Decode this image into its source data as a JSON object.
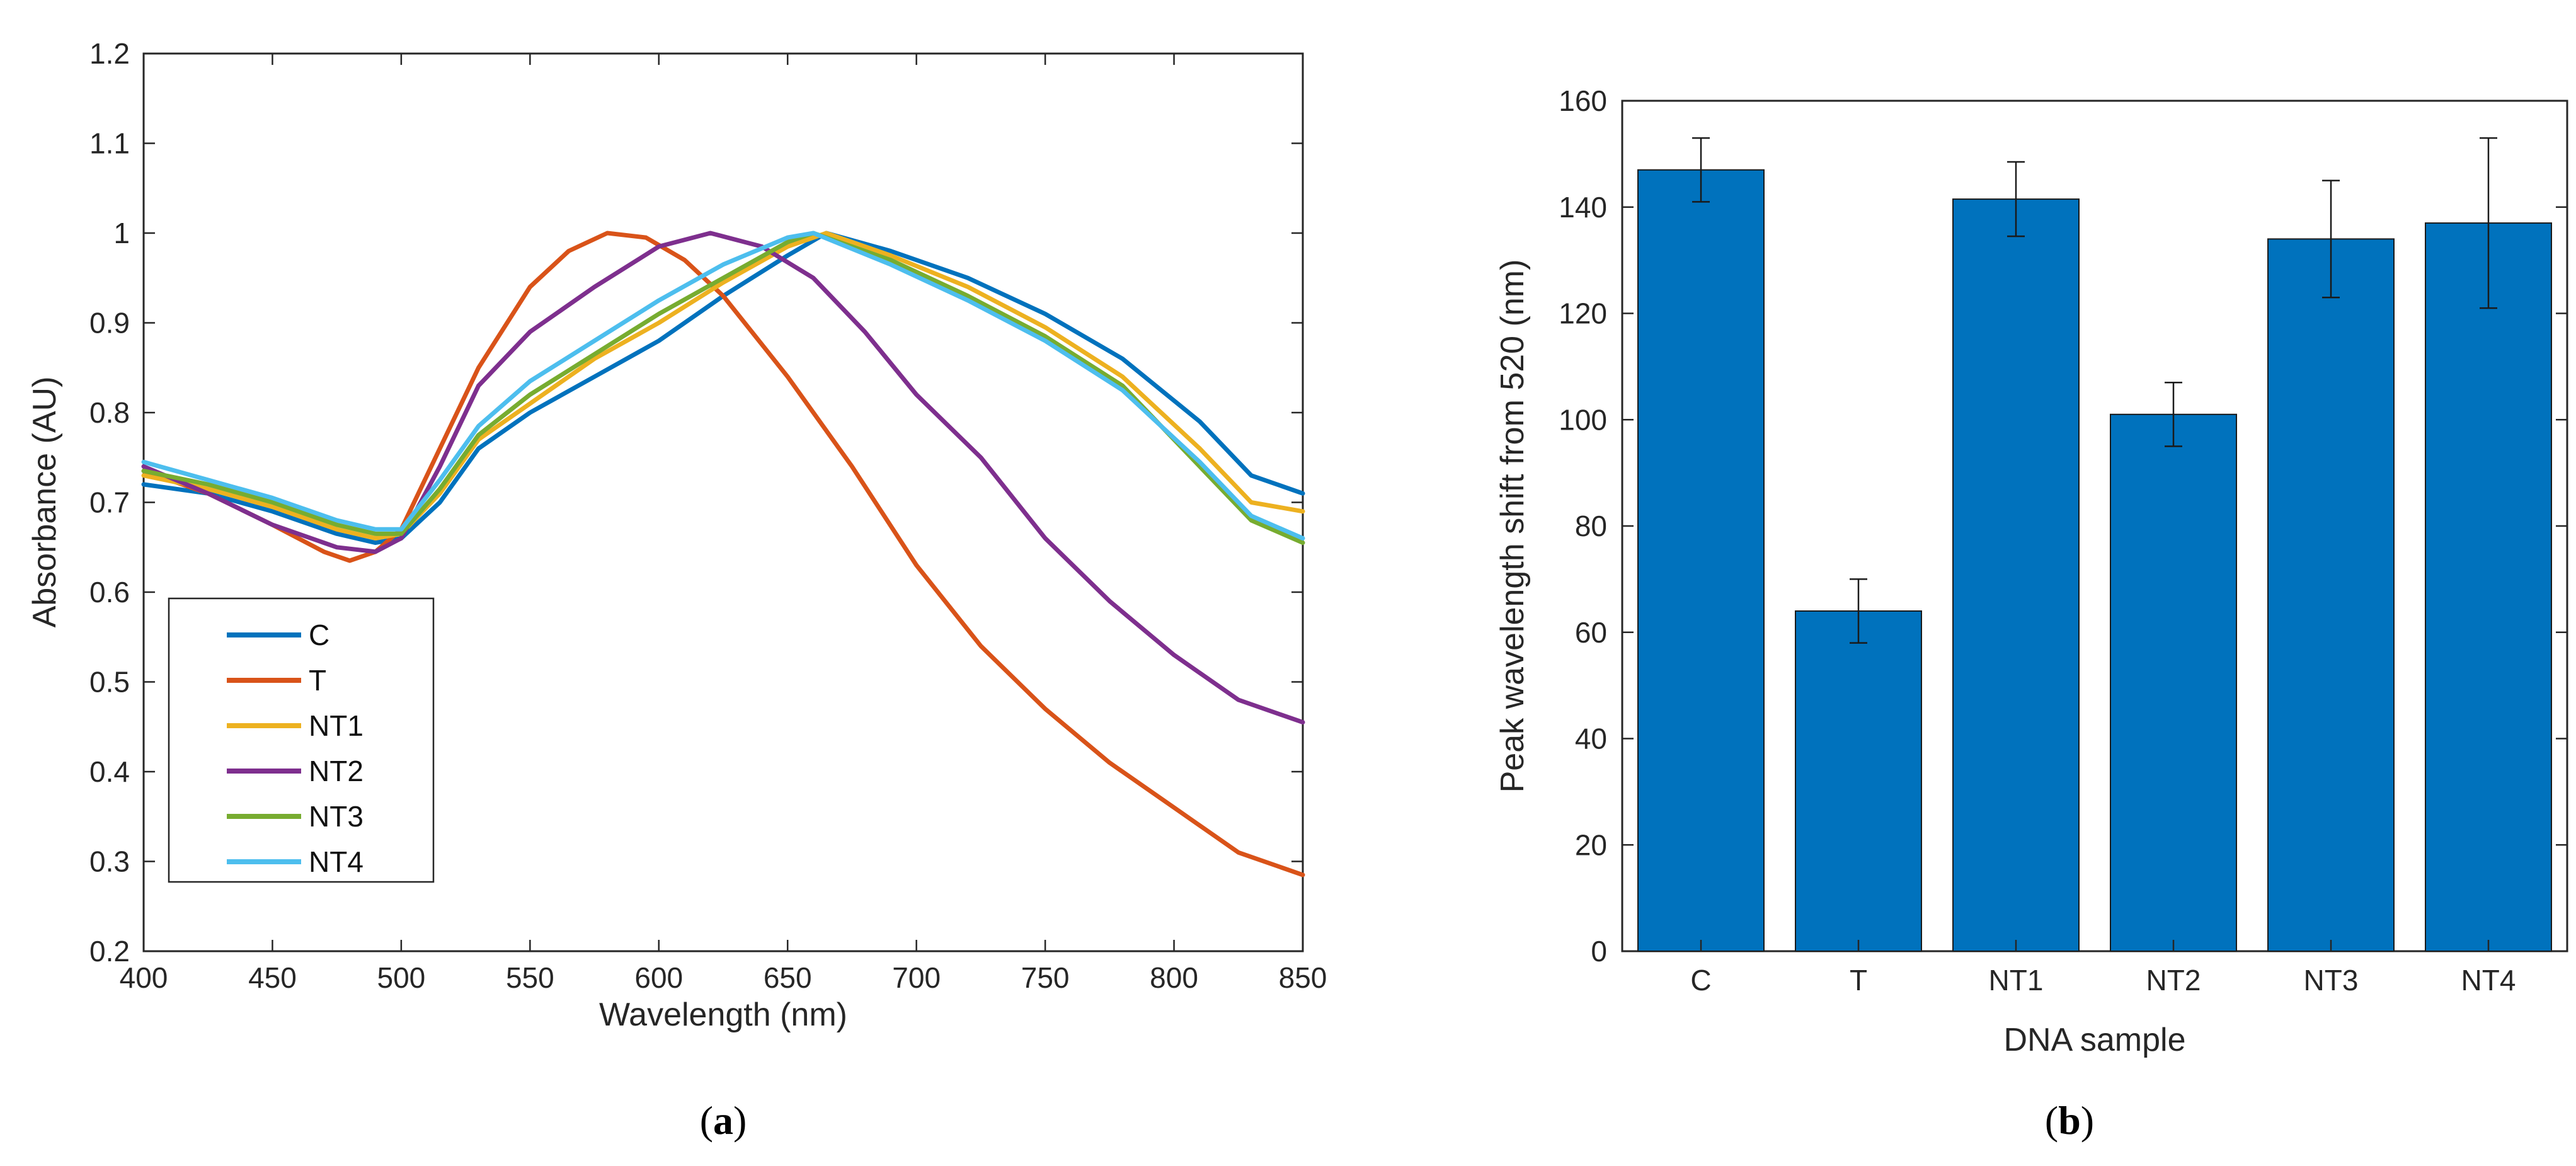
{
  "chart_data": [
    {
      "type": "line",
      "panel_label": "a",
      "xlabel": "Wavelength (nm)",
      "ylabel": "Absorbance (AU)",
      "xlim": [
        400,
        850
      ],
      "ylim": [
        0.2,
        1.2
      ],
      "xticks": [
        400,
        450,
        500,
        550,
        600,
        650,
        700,
        750,
        800,
        850
      ],
      "yticks": [
        0.2,
        0.3,
        0.4,
        0.5,
        0.6,
        0.7,
        0.8,
        0.9,
        1,
        1.1,
        1.2
      ],
      "ytick_labels": [
        "0.2",
        "0.3",
        "0.4",
        "0.5",
        "0.6",
        "0.7",
        "0.8",
        "0.9",
        "1",
        "1.1",
        "1.2"
      ],
      "legend_position": "bottom-left",
      "series": [
        {
          "name": "C",
          "color": "#0072BD",
          "x": [
            400,
            425,
            450,
            475,
            490,
            500,
            515,
            530,
            550,
            575,
            600,
            625,
            650,
            665,
            690,
            720,
            750,
            780,
            810,
            830,
            850
          ],
          "y": [
            0.72,
            0.71,
            0.69,
            0.665,
            0.655,
            0.66,
            0.7,
            0.76,
            0.8,
            0.84,
            0.88,
            0.93,
            0.975,
            1.0,
            0.98,
            0.95,
            0.91,
            0.86,
            0.79,
            0.73,
            0.71
          ]
        },
        {
          "name": "T",
          "color": "#D95319",
          "x": [
            400,
            425,
            450,
            470,
            480,
            490,
            500,
            515,
            530,
            550,
            565,
            580,
            595,
            610,
            625,
            650,
            675,
            700,
            725,
            750,
            775,
            800,
            825,
            850
          ],
          "y": [
            0.735,
            0.71,
            0.675,
            0.645,
            0.635,
            0.645,
            0.67,
            0.76,
            0.85,
            0.94,
            0.98,
            1.0,
            0.995,
            0.97,
            0.93,
            0.84,
            0.74,
            0.63,
            0.54,
            0.47,
            0.41,
            0.36,
            0.31,
            0.285
          ]
        },
        {
          "name": "NT1",
          "color": "#EDB120",
          "x": [
            400,
            425,
            450,
            475,
            490,
            500,
            515,
            530,
            550,
            575,
            600,
            625,
            650,
            665,
            690,
            720,
            750,
            780,
            810,
            830,
            850
          ],
          "y": [
            0.73,
            0.715,
            0.695,
            0.67,
            0.66,
            0.665,
            0.71,
            0.77,
            0.81,
            0.86,
            0.9,
            0.945,
            0.985,
            1.0,
            0.975,
            0.94,
            0.895,
            0.84,
            0.76,
            0.7,
            0.69
          ]
        },
        {
          "name": "NT2",
          "color": "#7E2F8E",
          "x": [
            400,
            425,
            450,
            475,
            490,
            500,
            515,
            530,
            550,
            575,
            600,
            620,
            640,
            660,
            680,
            700,
            725,
            750,
            775,
            800,
            825,
            850
          ],
          "y": [
            0.74,
            0.71,
            0.675,
            0.65,
            0.645,
            0.66,
            0.74,
            0.83,
            0.89,
            0.94,
            0.985,
            1.0,
            0.985,
            0.95,
            0.89,
            0.82,
            0.75,
            0.66,
            0.59,
            0.53,
            0.48,
            0.455
          ]
        },
        {
          "name": "NT3",
          "color": "#77AC30",
          "x": [
            400,
            425,
            450,
            475,
            490,
            500,
            515,
            530,
            550,
            575,
            600,
            625,
            650,
            660,
            690,
            720,
            750,
            780,
            810,
            830,
            850
          ],
          "y": [
            0.735,
            0.72,
            0.7,
            0.675,
            0.665,
            0.665,
            0.715,
            0.775,
            0.82,
            0.865,
            0.91,
            0.95,
            0.99,
            1.0,
            0.97,
            0.93,
            0.885,
            0.83,
            0.74,
            0.68,
            0.655
          ]
        },
        {
          "name": "NT4",
          "color": "#4DBEEE",
          "x": [
            400,
            425,
            450,
            475,
            490,
            500,
            515,
            530,
            550,
            575,
            600,
            625,
            650,
            660,
            690,
            720,
            750,
            780,
            810,
            830,
            850
          ],
          "y": [
            0.745,
            0.725,
            0.705,
            0.68,
            0.67,
            0.67,
            0.725,
            0.785,
            0.835,
            0.88,
            0.925,
            0.965,
            0.995,
            1.0,
            0.965,
            0.925,
            0.88,
            0.825,
            0.745,
            0.685,
            0.66
          ]
        }
      ]
    },
    {
      "type": "bar",
      "panel_label": "b",
      "xlabel": "DNA sample",
      "ylabel": "Peak wavelength shift from 520 (nm)",
      "categories": [
        "C",
        "T",
        "NT1",
        "NT2",
        "NT3",
        "NT4"
      ],
      "values": [
        147,
        64,
        141.5,
        101,
        134,
        137
      ],
      "errors": [
        6,
        6,
        7,
        6,
        11,
        16
      ],
      "ylim": [
        0,
        160
      ],
      "yticks": [
        0,
        20,
        40,
        60,
        80,
        100,
        120,
        140,
        160
      ],
      "bar_color": "#0072BD"
    }
  ]
}
